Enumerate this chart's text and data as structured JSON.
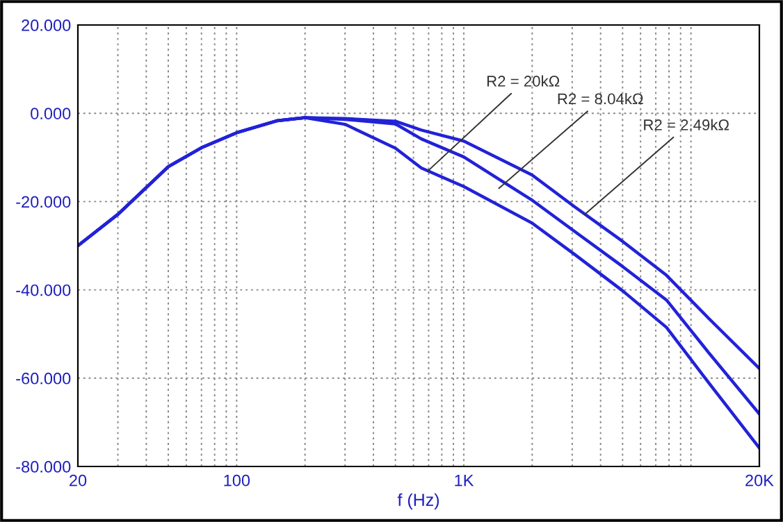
{
  "chart_data": {
    "type": "line",
    "xlabel": "f (Hz)",
    "log": "x",
    "grid": true,
    "line_style": "solid",
    "xlim": [
      20,
      20000
    ],
    "ylim": [
      -80,
      20
    ],
    "xticks": [
      {
        "value": 20,
        "label": "20"
      },
      {
        "value": 30,
        "label": null
      },
      {
        "value": 40,
        "label": null
      },
      {
        "value": 50,
        "label": null
      },
      {
        "value": 60,
        "label": null
      },
      {
        "value": 70,
        "label": null
      },
      {
        "value": 80,
        "label": null
      },
      {
        "value": 90,
        "label": null
      },
      {
        "value": 100,
        "label": "100"
      },
      {
        "value": 200,
        "label": null
      },
      {
        "value": 300,
        "label": null
      },
      {
        "value": 400,
        "label": null
      },
      {
        "value": 500,
        "label": null
      },
      {
        "value": 600,
        "label": null
      },
      {
        "value": 700,
        "label": null
      },
      {
        "value": 800,
        "label": null
      },
      {
        "value": 900,
        "label": null
      },
      {
        "value": 1000,
        "label": "1K"
      },
      {
        "value": 2000,
        "label": null
      },
      {
        "value": 3000,
        "label": null
      },
      {
        "value": 4000,
        "label": null
      },
      {
        "value": 5000,
        "label": null
      },
      {
        "value": 6000,
        "label": null
      },
      {
        "value": 7000,
        "label": null
      },
      {
        "value": 8000,
        "label": null
      },
      {
        "value": 9000,
        "label": null
      },
      {
        "value": 10000,
        "label": null
      },
      {
        "value": 20000,
        "label": "20K"
      }
    ],
    "yticks": [
      {
        "value": -80,
        "label": "-80.000"
      },
      {
        "value": -60,
        "label": "-60.000"
      },
      {
        "value": -40,
        "label": "-40.000"
      },
      {
        "value": -20,
        "label": "-20.000"
      },
      {
        "value": 0,
        "label": "0.000"
      },
      {
        "value": 20,
        "label": "20.000"
      }
    ],
    "x": [
      20,
      30,
      50,
      70,
      100,
      150,
      200,
      300,
      500,
      650,
      1000,
      2000,
      3100,
      5000,
      7800,
      12000,
      20000
    ],
    "series": [
      {
        "color": "#2222d8",
        "values": [
          -30,
          -22.9,
          -12.1,
          -7.8,
          -4.4,
          -1.7,
          -1.0,
          -2.5,
          -7.9,
          -12.4,
          -16.6,
          -24.9,
          -32.1,
          -40.2,
          -48.5,
          -61.1,
          -75.8
        ]
      },
      {
        "color": "#2222d8",
        "values": [
          -30,
          -22.9,
          -12.1,
          -7.8,
          -4.4,
          -1.7,
          -1.0,
          -1.4,
          -2.4,
          -5.8,
          -9.9,
          -19.7,
          -26.9,
          -34.7,
          -42.3,
          -54.3,
          -68.1
        ]
      },
      {
        "color": "#2222d8",
        "values": [
          -30,
          -22.9,
          -12.1,
          -7.8,
          -4.4,
          -1.7,
          -1.0,
          -1.2,
          -1.8,
          -3.8,
          -6.3,
          -14.0,
          -21.3,
          -29.0,
          -36.7,
          -46.5,
          -57.8
        ]
      }
    ],
    "annotations": [
      {
        "text": "R2 = 20kΩ",
        "x": 697,
        "y": -13.0
      },
      {
        "text": "R2 = 8.04kΩ",
        "x": 1428,
        "y": -17.0
      },
      {
        "text": "R2 = 2.49kΩ",
        "x": 3410,
        "y": -22.9
      }
    ]
  }
}
